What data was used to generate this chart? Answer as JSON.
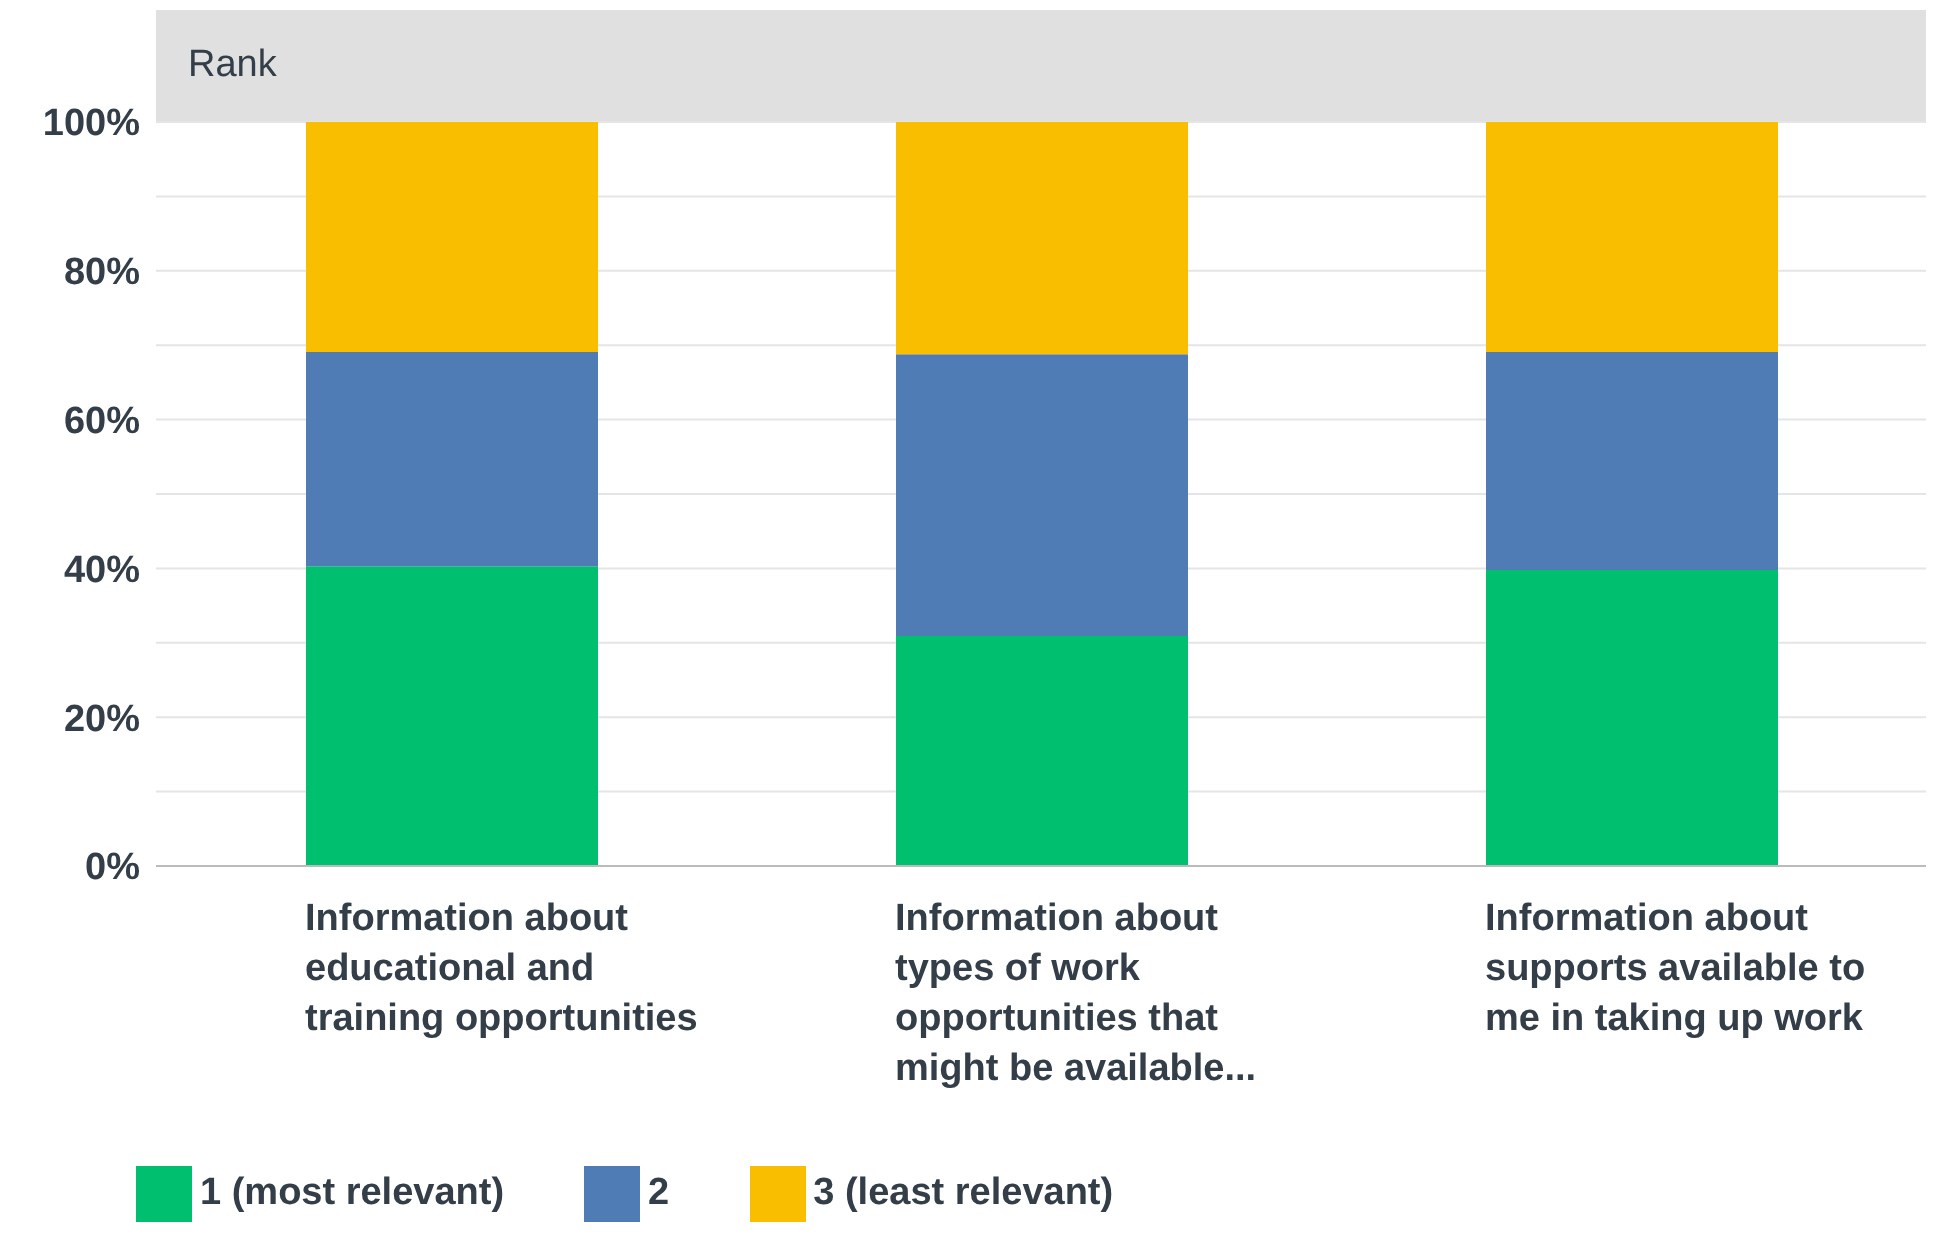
{
  "chart_data": {
    "type": "bar",
    "title": "Rank",
    "stacked": true,
    "categories": [
      "Information about educational and training opportunities",
      "Information about types of work opportunities that might be available...",
      "Information about supports available to me in taking up work"
    ],
    "series": [
      {
        "name": "1 (most relevant)",
        "color": "#00bf6f",
        "values": [
          40.3,
          30.9,
          39.8
        ]
      },
      {
        "name": "2",
        "color": "#507cb6",
        "values": [
          28.8,
          37.9,
          29.3
        ]
      },
      {
        "name": "3 (least relevant)",
        "color": "#f9be00",
        "values": [
          30.9,
          31.2,
          30.9
        ]
      }
    ],
    "ylim": [
      0,
      100
    ],
    "yticks": [
      {
        "value": 0,
        "label": "0%"
      },
      {
        "value": 10,
        "label": null
      },
      {
        "value": 20,
        "label": "20%"
      },
      {
        "value": 30,
        "label": null
      },
      {
        "value": 40,
        "label": "40%"
      },
      {
        "value": 50,
        "label": null
      },
      {
        "value": 60,
        "label": "60%"
      },
      {
        "value": 70,
        "label": null
      },
      {
        "value": 80,
        "label": "80%"
      },
      {
        "value": 90,
        "label": null
      },
      {
        "value": 100,
        "label": "100%"
      }
    ],
    "grid": "y",
    "legend": "bottom left"
  }
}
